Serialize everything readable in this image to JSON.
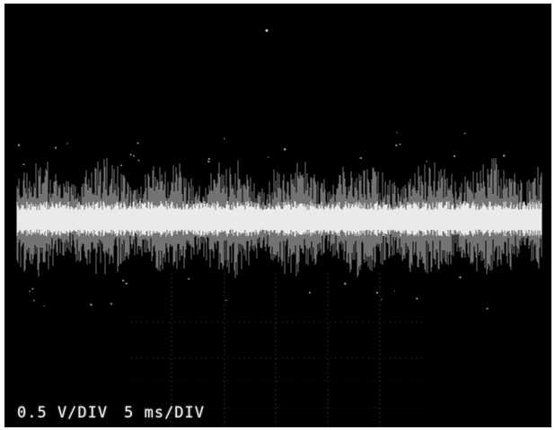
{
  "scope": {
    "vertical_scale_label": "0.5 V/DIV",
    "time_scale_label": "5 ms/DIV"
  },
  "colors": {
    "background": "#000000",
    "trace": "#ffffff",
    "graticule": "#8a8a8a",
    "frame": "#ffffff"
  }
}
